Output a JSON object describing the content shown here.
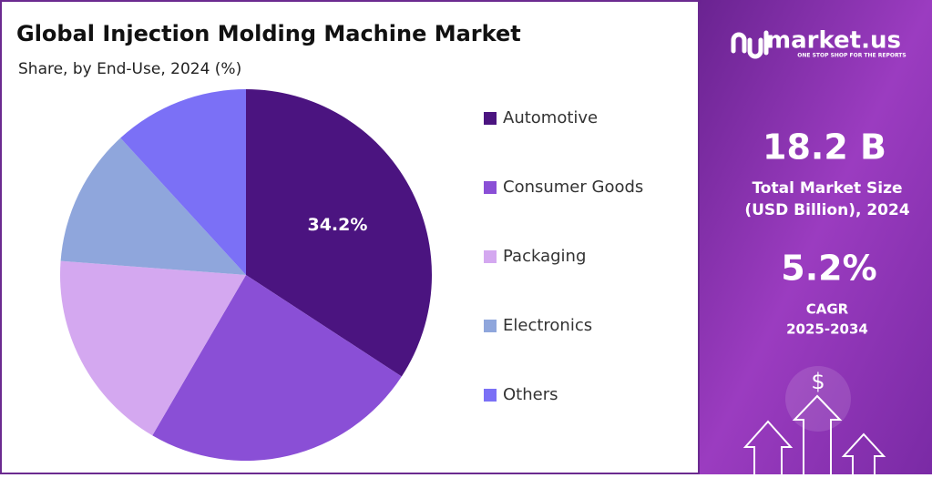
{
  "chart_data": {
    "type": "pie",
    "title": "Global Injection Molding Machine Market",
    "subtitle": "Share, by End-Use, 2024 (%)",
    "categories": [
      "Automotive",
      "Consumer Goods",
      "Packaging",
      "Electronics",
      "Others"
    ],
    "values": [
      34.2,
      24.2,
      17.8,
      12.0,
      11.8
    ],
    "value_labels": [
      "34.2%",
      null,
      null,
      null,
      null
    ],
    "colors": [
      "#4b1480",
      "#8a4fd6",
      "#d4a8f0",
      "#8fa6dc",
      "#7b70f6"
    ],
    "legend": "right"
  },
  "panel": {
    "brand": "market.us",
    "tagline": "ONE STOP SHOP FOR THE REPORTS",
    "market_size": "18.2 B",
    "market_size_label": [
      "Total Market Size",
      "(USD Billion), 2024"
    ],
    "cagr": "5.2%",
    "cagr_label": [
      "CAGR",
      "2025-2034"
    ],
    "currency_icon": "$"
  }
}
